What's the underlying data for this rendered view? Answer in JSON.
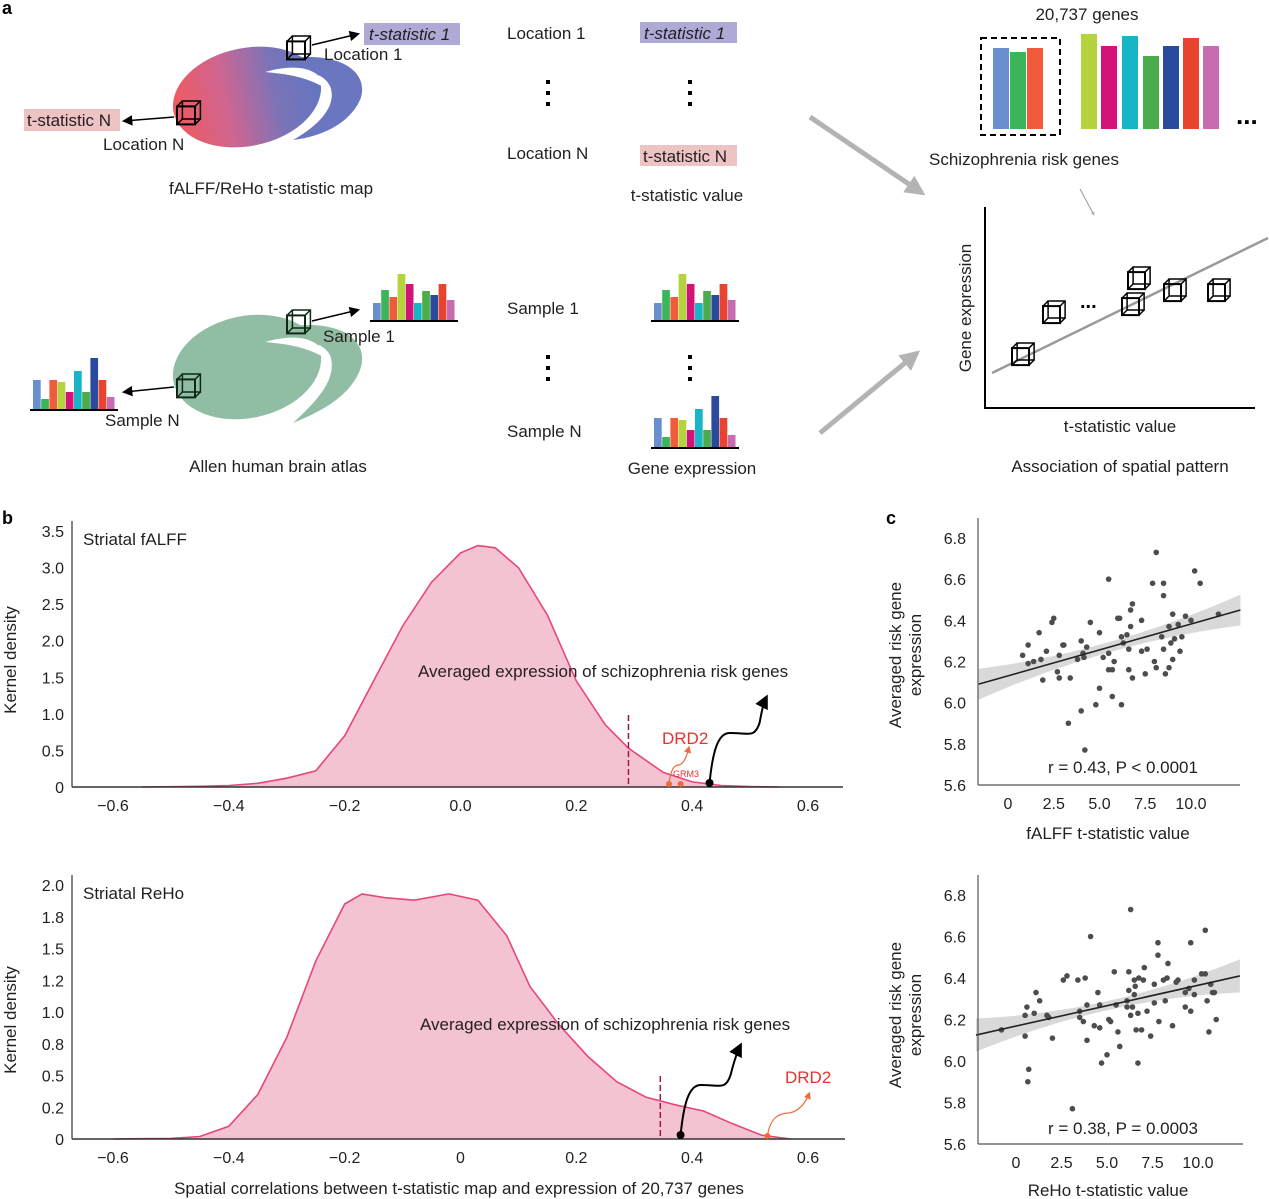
{
  "panels": {
    "a": "a",
    "b": "b",
    "c": "c"
  },
  "schematic": {
    "tstat_map": {
      "tstat1": "t-statistic 1",
      "location1": "Location 1",
      "tstatN": "t-statistic N",
      "locationN": "Location N",
      "caption": "fALFF/ReHo t-statistic map",
      "colors": {
        "gradient_start": "#ec5a62",
        "gradient_end": "#6a74bd",
        "tstat1_box": "#aeaad6",
        "tstatN_box": "#eec3c3"
      }
    },
    "atlas": {
      "sample1": "Sample 1",
      "sampleN": "Sample N",
      "caption": "Allen human brain atlas",
      "color": "#92bda5"
    },
    "middle": {
      "location1": "Location 1",
      "tstat1": "t-statistic 1",
      "locationN": "Location N",
      "tstatN": "t-statistic N",
      "tstat_caption": "t-statistic value",
      "sample1": "Sample 1",
      "sampleN": "Sample N",
      "gene_caption": "Gene expression"
    },
    "right": {
      "genes_title": "20,737 genes",
      "ellipsis": "...",
      "risk_caption": "Schizophrenia risk genes",
      "assoc_ylabel": "Gene expression",
      "assoc_xlabel": "t-statistic value",
      "assoc_ellipsis": "...",
      "caption": "Association of spatial pattern"
    }
  },
  "chart_data": [
    {
      "type": "area",
      "panel": "b",
      "title": "Striatal fALFF",
      "ylabel": "Kernel density",
      "xlabel": "",
      "xlim": [
        -0.67,
        0.66
      ],
      "ylim": [
        0,
        3.5
      ],
      "xticks": [
        "-0.6",
        "-0.4",
        "-0.2",
        "0.0",
        "0.2",
        "0.4",
        "0.6"
      ],
      "yticks": [
        "0",
        "0.5",
        "1.0",
        "1.5",
        "2.0",
        "2.5",
        "3.0",
        "3.5"
      ],
      "x": [
        -0.55,
        -0.45,
        -0.4,
        -0.35,
        -0.3,
        -0.25,
        -0.2,
        -0.15,
        -0.1,
        -0.05,
        0,
        0.03,
        0.06,
        0.1,
        0.15,
        0.2,
        0.25,
        0.29,
        0.35,
        0.4,
        0.45,
        0.5,
        0.55
      ],
      "y": [
        0,
        0.01,
        0.02,
        0.05,
        0.12,
        0.22,
        0.7,
        1.45,
        2.2,
        2.8,
        3.2,
        3.3,
        3.27,
        3.0,
        2.35,
        1.45,
        0.85,
        0.53,
        0.2,
        0.07,
        0.02,
        0.005,
        0
      ],
      "threshold_x": 0.29,
      "annotation": "Averaged expression of schizophrenia risk genes",
      "annotation_x": 0.43,
      "genes": [
        {
          "label": "DRD2",
          "x": 0.36
        },
        {
          "label": "GRM3",
          "x": 0.38
        }
      ],
      "colors": {
        "fill": "#f4c3d2",
        "line": "#e8467a",
        "threshold": "#a0164a",
        "gene": "#e8432e"
      }
    },
    {
      "type": "area",
      "panel": "b",
      "title": "Striatal ReHo",
      "ylabel": "Kernel density",
      "xlabel": "Spatial correlations between t-statistic map and expression of 20,737 genes",
      "xlim": [
        -0.67,
        0.67
      ],
      "ylim": [
        0,
        2.0
      ],
      "xticks": [
        "-0.6",
        "-0.4",
        "-0.2",
        "0",
        "0.2",
        "0.4",
        "0.6"
      ],
      "yticks": [
        "0",
        "0.2",
        "0.5",
        "0.8",
        "1.0",
        "1.2",
        "1.5",
        "1.8",
        "2.0"
      ],
      "x": [
        -0.6,
        -0.5,
        -0.45,
        -0.4,
        -0.35,
        -0.3,
        -0.25,
        -0.2,
        -0.17,
        -0.13,
        -0.08,
        -0.02,
        0.03,
        0.08,
        0.12,
        0.17,
        0.22,
        0.27,
        0.32,
        0.37,
        0.42,
        0.47,
        0.52,
        0.57
      ],
      "y": [
        0,
        0.005,
        0.02,
        0.1,
        0.35,
        0.8,
        1.4,
        1.85,
        1.93,
        1.9,
        1.88,
        1.93,
        1.88,
        1.6,
        1.2,
        0.9,
        0.65,
        0.45,
        0.33,
        0.27,
        0.22,
        0.12,
        0.03,
        0
      ],
      "threshold_x": 0.345,
      "annotation": "Averaged expression of schizophrenia risk genes",
      "annotation_x": 0.38,
      "genes": [
        {
          "label": "DRD2",
          "x": 0.53
        }
      ],
      "colors": {
        "fill": "#f4c3d2",
        "line": "#e8467a",
        "threshold": "#a0164a",
        "gene": "#e8432e"
      }
    },
    {
      "type": "scatter",
      "panel": "c",
      "ylabel": "Averaged risk gene expression",
      "xlabel": "fALFF t-statistic value",
      "annotation": "r = 0.43,  P < 0.0001",
      "xlim": [
        -1.6,
        12.7
      ],
      "ylim": [
        5.6,
        6.9
      ],
      "xticks": [
        "0",
        "2.5",
        "5.0",
        "7.5",
        "10.0"
      ],
      "yticks": [
        "5.6",
        "5.8",
        "6.0",
        "6.2",
        "6.4",
        "6.6",
        "6.8"
      ],
      "fit": {
        "x": [
          -1.6,
          12.7
        ],
        "y": [
          6.09,
          6.45
        ],
        "ci_halfwidth_ends": 0.075,
        "ci_halfwidth_mid": 0.025
      },
      "points": [
        [
          0.8,
          6.23
        ],
        [
          1.1,
          6.28
        ],
        [
          1.1,
          6.19
        ],
        [
          1.4,
          6.2
        ],
        [
          1.7,
          6.34
        ],
        [
          1.8,
          6.21
        ],
        [
          1.9,
          6.11
        ],
        [
          2.1,
          6.25
        ],
        [
          2.4,
          6.39
        ],
        [
          2.5,
          6.41
        ],
        [
          2.7,
          6.15
        ],
        [
          2.8,
          6.12
        ],
        [
          2.8,
          6.23
        ],
        [
          3.0,
          6.28
        ],
        [
          3.05,
          6.28
        ],
        [
          3.3,
          5.9
        ],
        [
          3.4,
          6.12
        ],
        [
          3.8,
          6.21
        ],
        [
          4.0,
          5.96
        ],
        [
          4.0,
          6.3
        ],
        [
          4.1,
          6.24
        ],
        [
          4.15,
          6.22
        ],
        [
          4.2,
          5.77
        ],
        [
          4.3,
          6.27
        ],
        [
          4.5,
          6.39
        ],
        [
          5.0,
          6.34
        ],
        [
          5.2,
          6.22
        ],
        [
          4.8,
          5.99
        ],
        [
          5.0,
          6.07
        ],
        [
          5.5,
          6.6
        ],
        [
          5.5,
          6.24
        ],
        [
          5.5,
          6.16
        ],
        [
          5.7,
          6.16
        ],
        [
          5.8,
          6.2
        ],
        [
          5.7,
          6.03
        ],
        [
          6.0,
          6.41
        ],
        [
          6.1,
          6.41
        ],
        [
          6.2,
          5.99
        ],
        [
          6.2,
          6.32
        ],
        [
          6.3,
          6.29
        ],
        [
          6.5,
          6.33
        ],
        [
          6.6,
          6.16
        ],
        [
          6.6,
          6.26
        ],
        [
          6.7,
          6.45
        ],
        [
          6.7,
          6.37
        ],
        [
          6.8,
          6.48
        ],
        [
          6.8,
          6.12
        ],
        [
          7.3,
          6.4
        ],
        [
          7.3,
          6.25
        ],
        [
          7.5,
          6.14
        ],
        [
          7.6,
          6.26
        ],
        [
          7.9,
          6.58
        ],
        [
          8.0,
          6.2
        ],
        [
          8.1,
          6.17
        ],
        [
          8.1,
          6.73
        ],
        [
          8.4,
          6.32
        ],
        [
          8.5,
          6.26
        ],
        [
          8.5,
          6.52
        ],
        [
          8.5,
          6.58
        ],
        [
          8.6,
          6.14
        ],
        [
          8.8,
          6.37
        ],
        [
          8.8,
          6.17
        ],
        [
          8.9,
          6.29
        ],
        [
          9.0,
          6.43
        ],
        [
          9.0,
          6.21
        ],
        [
          9.1,
          6.31
        ],
        [
          9.3,
          6.38
        ],
        [
          9.4,
          6.25
        ],
        [
          9.5,
          6.32
        ],
        [
          9.7,
          6.42
        ],
        [
          10.0,
          6.4
        ],
        [
          10.2,
          6.64
        ],
        [
          10.5,
          6.58
        ],
        [
          11.5,
          6.43
        ]
      ],
      "colors": {
        "point": "#4d4d4d",
        "fit": "#222222",
        "ci": "#d9d9d9"
      }
    },
    {
      "type": "scatter",
      "panel": "c",
      "ylabel": "Averaged risk gene expression",
      "xlabel": "ReHo t-statistic value",
      "annotation": "r = 0.38,  P = 0.0003",
      "xlim": [
        -2.2,
        12.3
      ],
      "ylim": [
        5.6,
        6.9
      ],
      "xticks": [
        "0",
        "2.5",
        "5.0",
        "7.5",
        "10.0"
      ],
      "yticks": [
        "5.6",
        "5.8",
        "6.0",
        "6.2",
        "6.4",
        "6.6",
        "6.8"
      ],
      "fit": {
        "x": [
          -2.2,
          12.3
        ],
        "y": [
          6.125,
          6.41
        ],
        "ci_halfwidth_ends": 0.08,
        "ci_halfwidth_mid": 0.022
      },
      "points": [
        [
          -0.8,
          6.15
        ],
        [
          0.5,
          6.12
        ],
        [
          0.5,
          6.22
        ],
        [
          0.6,
          6.26
        ],
        [
          0.65,
          5.9
        ],
        [
          0.7,
          5.96
        ],
        [
          1.0,
          6.23
        ],
        [
          1.1,
          6.33
        ],
        [
          1.3,
          6.29
        ],
        [
          1.7,
          6.22
        ],
        [
          1.8,
          6.21
        ],
        [
          2.0,
          6.11
        ],
        [
          2.6,
          6.39
        ],
        [
          2.8,
          6.41
        ],
        [
          3.1,
          5.77
        ],
        [
          3.4,
          6.39
        ],
        [
          3.5,
          6.21
        ],
        [
          3.5,
          6.24
        ],
        [
          3.7,
          6.19
        ],
        [
          3.8,
          6.4
        ],
        [
          3.9,
          6.1
        ],
        [
          3.9,
          6.27
        ],
        [
          4.1,
          6.6
        ],
        [
          4.3,
          6.17
        ],
        [
          4.5,
          6.33
        ],
        [
          4.6,
          6.16
        ],
        [
          4.6,
          6.27
        ],
        [
          4.7,
          5.99
        ],
        [
          5.0,
          6.03
        ],
        [
          5.1,
          6.2
        ],
        [
          5.2,
          6.19
        ],
        [
          5.4,
          6.43
        ],
        [
          5.5,
          6.27
        ],
        [
          5.6,
          6.14
        ],
        [
          5.7,
          6.07
        ],
        [
          6.1,
          6.26
        ],
        [
          6.1,
          6.29
        ],
        [
          6.2,
          6.43
        ],
        [
          6.2,
          6.34
        ],
        [
          6.3,
          6.73
        ],
        [
          6.3,
          6.22
        ],
        [
          6.4,
          6.26
        ],
        [
          6.5,
          6.32
        ],
        [
          6.5,
          6.39
        ],
        [
          6.55,
          6.36
        ],
        [
          6.6,
          6.15
        ],
        [
          6.7,
          5.99
        ],
        [
          6.7,
          6.23
        ],
        [
          6.75,
          6.4
        ],
        [
          6.9,
          6.15
        ],
        [
          7.0,
          6.39
        ],
        [
          7.05,
          6.45
        ],
        [
          7.2,
          6.24
        ],
        [
          7.4,
          6.12
        ],
        [
          7.6,
          6.37
        ],
        [
          7.6,
          6.28
        ],
        [
          7.8,
          6.51
        ],
        [
          7.8,
          6.57
        ],
        [
          7.85,
          6.19
        ],
        [
          8.1,
          6.39
        ],
        [
          8.2,
          6.29
        ],
        [
          8.3,
          6.4
        ],
        [
          8.35,
          6.47
        ],
        [
          8.6,
          6.17
        ],
        [
          8.8,
          6.38
        ],
        [
          8.9,
          6.39
        ],
        [
          9.3,
          6.26
        ],
        [
          9.3,
          6.33
        ],
        [
          9.5,
          6.35
        ],
        [
          9.6,
          6.24
        ],
        [
          9.6,
          6.57
        ],
        [
          9.8,
          6.39
        ],
        [
          9.8,
          6.32
        ],
        [
          10.2,
          6.42
        ],
        [
          10.4,
          6.42
        ],
        [
          10.4,
          6.63
        ],
        [
          10.5,
          6.29
        ],
        [
          10.6,
          6.14
        ],
        [
          10.7,
          6.37
        ],
        [
          10.8,
          6.33
        ],
        [
          10.9,
          6.33
        ],
        [
          11.0,
          6.2
        ]
      ],
      "colors": {
        "point": "#4d4d4d",
        "fit": "#222222",
        "ci": "#d9d9d9"
      }
    }
  ]
}
